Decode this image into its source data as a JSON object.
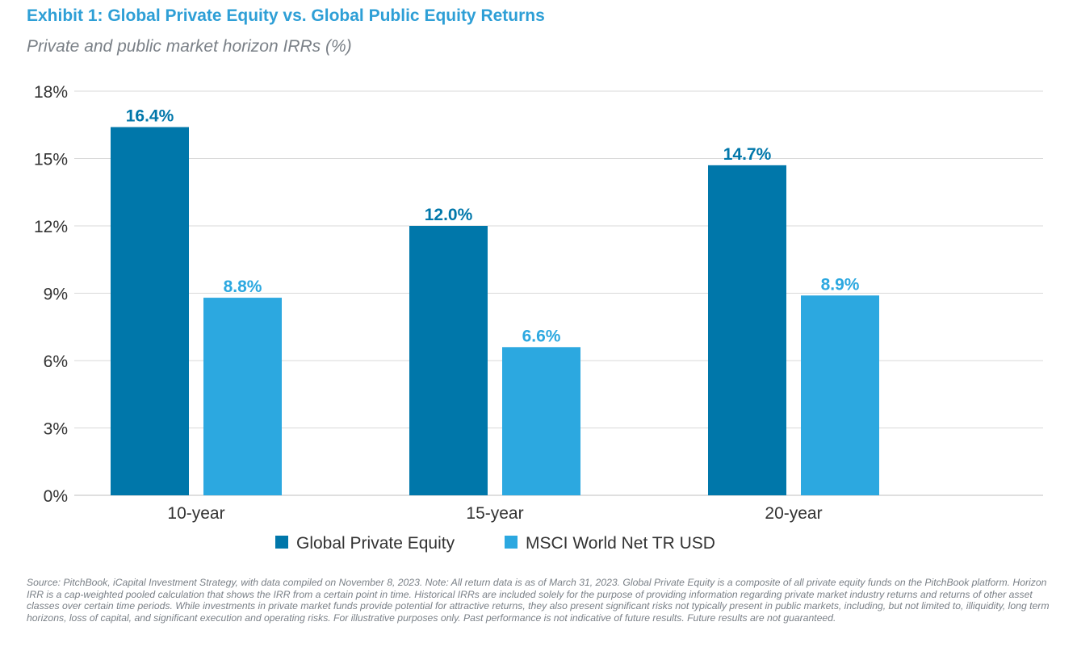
{
  "chart_data": {
    "type": "bar",
    "title": "Exhibit 1: Global Private Equity vs. Global Public Equity Returns",
    "subtitle": "Private and public market horizon IRRs (%)",
    "categories": [
      "10-year",
      "15-year",
      "20-year"
    ],
    "series": [
      {
        "name": "Global Private Equity",
        "values": [
          16.4,
          12.0,
          14.7
        ],
        "labels": [
          "16.4%",
          "12.0%",
          "14.7%"
        ],
        "color": "#0077aa"
      },
      {
        "name": "MSCI World Net TR USD",
        "values": [
          8.8,
          6.6,
          8.9
        ],
        "labels": [
          "8.8%",
          "6.6%",
          "8.9%"
        ],
        "color": "#2ca8e0"
      }
    ],
    "yticks": [
      0,
      3,
      6,
      9,
      12,
      15,
      18
    ],
    "ytick_labels": [
      "0%",
      "3%",
      "6%",
      "9%",
      "12%",
      "15%",
      "18%"
    ],
    "ylim": [
      0,
      18
    ],
    "grid": true,
    "legend": "bottom",
    "xlabel": "",
    "ylabel": ""
  },
  "footnote": "Source: PitchBook, iCapital Investment Strategy, with data compiled on November 8, 2023. Note: All return data is as of March 31, 2023. Global Private Equity is a composite of all private equity funds on the PitchBook platform. Horizon IRR is a cap-weighted pooled calculation that shows the IRR from a certain point in time. Historical IRRs are included solely for the purpose of providing information regarding private market industry returns and returns of other asset classes over certain time periods. While investments in private market funds provide potential for attractive returns, they also present significant risks not typically present in public markets, including, but not limited to, illiquidity, long term horizons, loss of capital, and significant execution and operating risks. For illustrative purposes only. Past performance is not indicative of future results. Future results are not guaranteed."
}
